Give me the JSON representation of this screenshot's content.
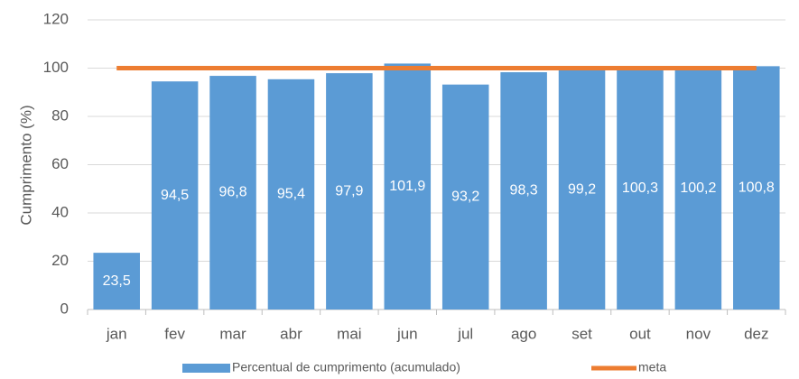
{
  "chart_data": {
    "type": "bar",
    "y_label": "Cumprimento (%)",
    "categories": [
      "jan",
      "fev",
      "mar",
      "abr",
      "mai",
      "jun",
      "jul",
      "ago",
      "set",
      "out",
      "nov",
      "dez"
    ],
    "series": [
      {
        "name": "Percentual de cumprimento (acumulado)",
        "type": "bar",
        "color": "#5b9bd5",
        "values": [
          23.5,
          94.5,
          96.8,
          95.4,
          97.9,
          101.9,
          93.2,
          98.3,
          99.2,
          100.3,
          100.2,
          100.8
        ],
        "value_labels": [
          "23,5",
          "94,5",
          "96,8",
          "95,4",
          "97,9",
          "101,9",
          "93,2",
          "98,3",
          "99,2",
          "100,3",
          "100,2",
          "100,8"
        ]
      },
      {
        "name": "meta",
        "type": "line",
        "color": "#ed7d31",
        "values": [
          100,
          100,
          100,
          100,
          100,
          100,
          100,
          100,
          100,
          100,
          100,
          100
        ]
      }
    ],
    "ylim": [
      0,
      120
    ],
    "yticks": [
      0,
      20,
      40,
      60,
      80,
      100,
      120
    ],
    "grid": true,
    "legend": "bottom"
  }
}
